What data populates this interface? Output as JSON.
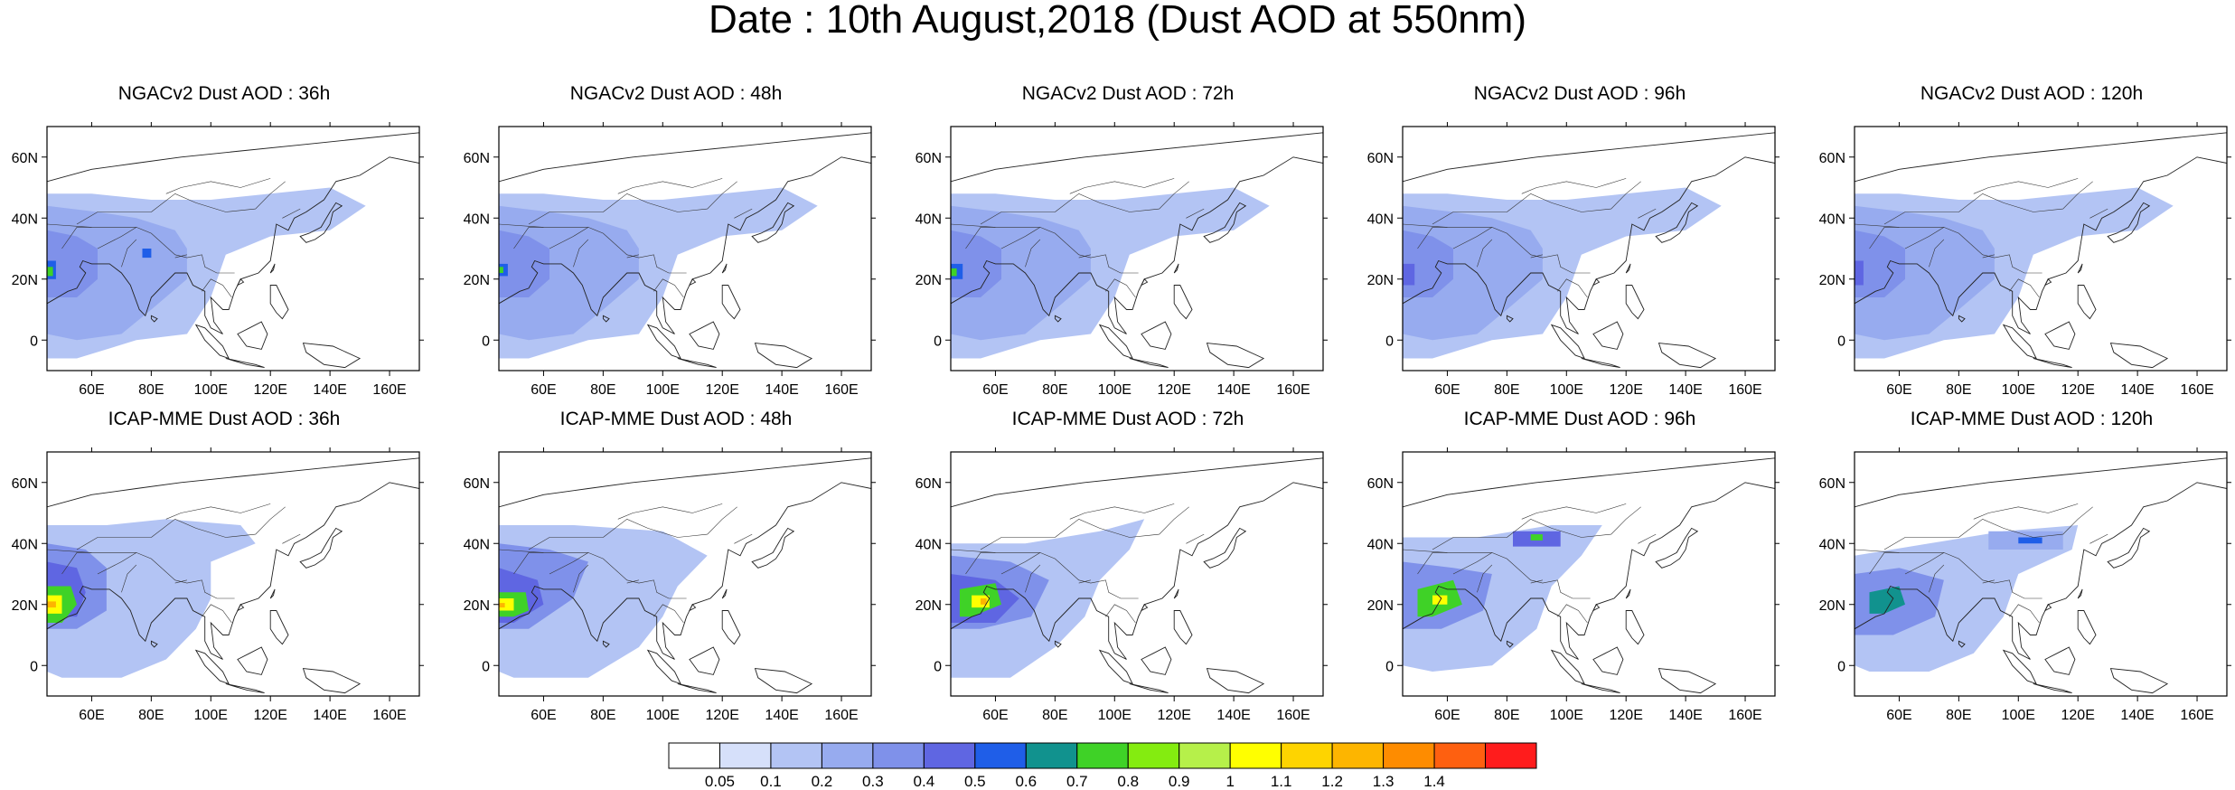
{
  "title": "Date : 10th August,2018 (Dust AOD at 550nm)",
  "map_extent": {
    "lon_min": 45,
    "lon_max": 170,
    "lat_min": -10,
    "lat_max": 70
  },
  "x_ticks": [
    "60E",
    "80E",
    "100E",
    "120E",
    "140E",
    "160E"
  ],
  "y_ticks": [
    "60N",
    "40N",
    "20N",
    "0"
  ],
  "panels": [
    {
      "title": "NGACv2 Dust AOD : 36h",
      "model": "NGACv2",
      "lead": "36h"
    },
    {
      "title": "NGACv2 Dust AOD : 48h",
      "model": "NGACv2",
      "lead": "48h"
    },
    {
      "title": "NGACv2 Dust AOD : 72h",
      "model": "NGACv2",
      "lead": "72h"
    },
    {
      "title": "NGACv2 Dust AOD : 96h",
      "model": "NGACv2",
      "lead": "96h"
    },
    {
      "title": "NGACv2 Dust AOD : 120h",
      "model": "NGACv2",
      "lead": "120h"
    },
    {
      "title": "ICAP-MME Dust AOD : 36h",
      "model": "ICAP-MME",
      "lead": "36h"
    },
    {
      "title": "ICAP-MME Dust AOD : 48h",
      "model": "ICAP-MME",
      "lead": "48h"
    },
    {
      "title": "ICAP-MME Dust AOD : 72h",
      "model": "ICAP-MME",
      "lead": "72h"
    },
    {
      "title": "ICAP-MME Dust AOD : 96h",
      "model": "ICAP-MME",
      "lead": "96h"
    },
    {
      "title": "ICAP-MME Dust AOD : 120h",
      "model": "ICAP-MME",
      "lead": "120h"
    }
  ],
  "colorbar": {
    "labels": [
      "0.05",
      "0.1",
      "0.2",
      "0.3",
      "0.4",
      "0.5",
      "0.6",
      "0.7",
      "0.8",
      "0.9",
      "1",
      "1.1",
      "1.2",
      "1.3",
      "1.4"
    ],
    "colors": [
      "#ffffff",
      "#d6e0fa",
      "#b3c4f4",
      "#97abef",
      "#7f91ea",
      "#5f66e2",
      "#1f5ee8",
      "#11928e",
      "#3fd227",
      "#84ec10",
      "#b6f04a",
      "#ffff00",
      "#fed400",
      "#fdb500",
      "#fe8c00",
      "#fe6010",
      "#ff1c1c"
    ]
  }
}
